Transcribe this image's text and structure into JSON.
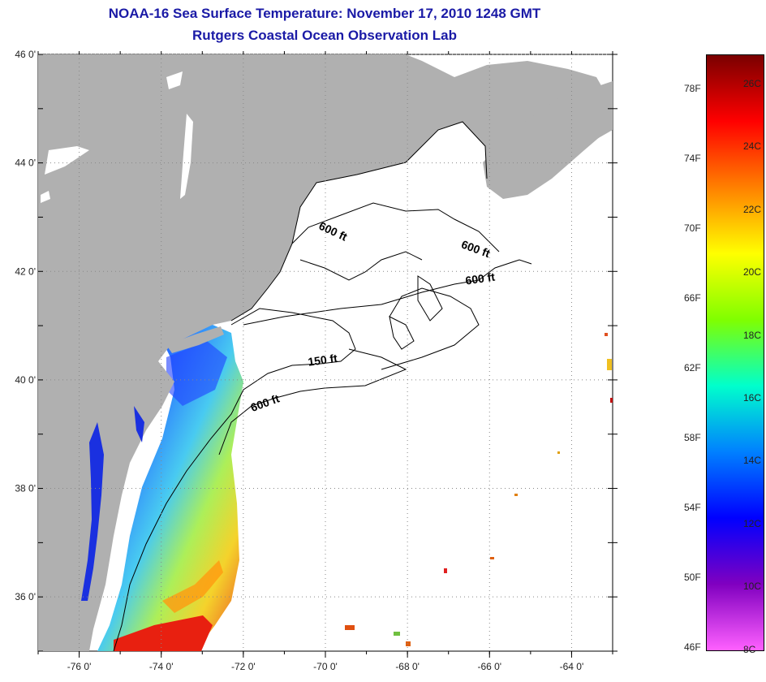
{
  "header": {
    "title": "NOAA-16 Sea Surface Temperature:  November 17, 2010 1248 GMT",
    "subtitle": "Rutgers Coastal Ocean Observation Lab"
  },
  "map": {
    "lat_range": [
      35,
      46
    ],
    "lon_range": [
      -77,
      -63
    ],
    "lat_ticks": [
      {
        "value": 46,
        "label": "46 0'"
      },
      {
        "value": 44,
        "label": "44 0'"
      },
      {
        "value": 42,
        "label": "42 0'"
      },
      {
        "value": 40,
        "label": "40 0'"
      },
      {
        "value": 38,
        "label": "38 0'"
      },
      {
        "value": 36,
        "label": "36 0'"
      }
    ],
    "lon_ticks": [
      {
        "value": -76,
        "label": "-76 0'"
      },
      {
        "value": -74,
        "label": "-74 0'"
      },
      {
        "value": -72,
        "label": "-72 0'"
      },
      {
        "value": -70,
        "label": "-70 0'"
      },
      {
        "value": -68,
        "label": "-68 0'"
      },
      {
        "value": -66,
        "label": "-66 0'"
      },
      {
        "value": -64,
        "label": "-64 0'"
      }
    ],
    "contour_labels": [
      "600 ft",
      "600 ft",
      "600 ft",
      "150 ft",
      "600 ft"
    ],
    "colors": {
      "land": "#b0b0b0",
      "water": "#ffffff",
      "grid": "#888888",
      "contour": "#000000"
    }
  },
  "colorbar": {
    "fahrenheit_labels": [
      "78F",
      "74F",
      "70F",
      "66F",
      "62F",
      "58F",
      "54F",
      "50F",
      "46F"
    ],
    "celsius_labels": [
      "26C",
      "24C",
      "22C",
      "20C",
      "18C",
      "16C",
      "14C",
      "12C",
      "10C",
      "8C"
    ],
    "colors": [
      "#7a0000",
      "#ff0000",
      "#ff8000",
      "#ffff00",
      "#80ff00",
      "#00ffcc",
      "#0080ff",
      "#0000ff",
      "#8000c0",
      "#ff60ff"
    ]
  }
}
